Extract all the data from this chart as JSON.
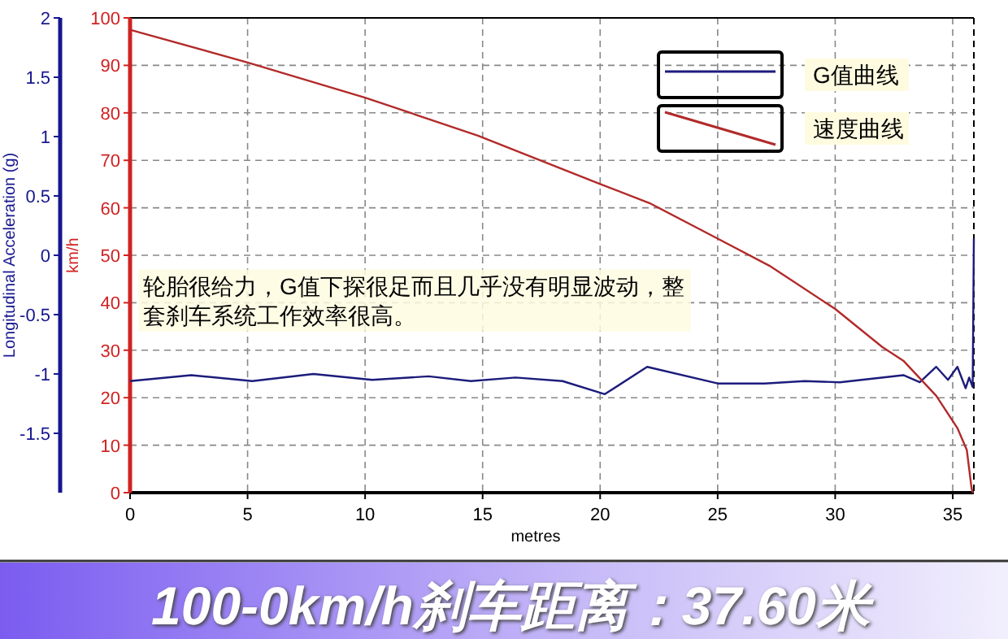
{
  "chart_data": {
    "type": "line",
    "xlabel": "metres",
    "ylabel": "Longitudinal Acceleration (g)",
    "y2label": "km/h",
    "xlim": [
      0,
      35.9
    ],
    "xticks": [
      0,
      5,
      10,
      15,
      20,
      25,
      30,
      35
    ],
    "ylim": [
      -2,
      2
    ],
    "yticks": [
      -1.5,
      -1,
      -0.5,
      0,
      0.5,
      1,
      1.5,
      2
    ],
    "y2lim": [
      0,
      100
    ],
    "y2ticks": [
      0,
      10,
      20,
      30,
      40,
      50,
      60,
      70,
      80,
      90,
      100
    ],
    "grid": true,
    "legend": "top right",
    "line_style": "solid",
    "series": [
      {
        "name": "G值曲线",
        "color": "#1c1c7c",
        "x": [
          0,
          2.6,
          5.2,
          7.8,
          10.3,
          12.7,
          14.5,
          16.4,
          18.4,
          20.2,
          22.0,
          25.0,
          27.0,
          28.7,
          30.2,
          32.9,
          33.6,
          34.3,
          34.8,
          35.2,
          35.55,
          35.7,
          35.85,
          35.9
        ],
        "values": [
          -1.06,
          -1.01,
          -1.06,
          -1.0,
          -1.05,
          -1.02,
          -1.06,
          -1.03,
          -1.06,
          -1.17,
          -0.94,
          -1.08,
          -1.08,
          -1.06,
          -1.07,
          -1.01,
          -1.07,
          -0.94,
          -1.05,
          -0.94,
          -1.12,
          -1.03,
          -1.11,
          0.14
        ]
      },
      {
        "name": "速度曲线",
        "color": "#b22a2a",
        "axis": "y2",
        "x": [
          0,
          5,
          10,
          14.8,
          20,
          22.1,
          25,
          27.2,
          30,
          32,
          32.9,
          34.3,
          35.2,
          35.6,
          35.8,
          35.85
        ],
        "values": [
          97.5,
          90.6,
          83.2,
          75.2,
          65,
          61,
          53.5,
          47.8,
          38.7,
          30.7,
          27.8,
          20.4,
          13.6,
          9,
          1,
          0
        ]
      }
    ],
    "annotations": [
      "轮胎很给力，G值下探很足而且几乎没有明显波动，整套刹车系统工作效率很高。",
      "100-0km/h刹车距离：37.60米"
    ]
  }
}
